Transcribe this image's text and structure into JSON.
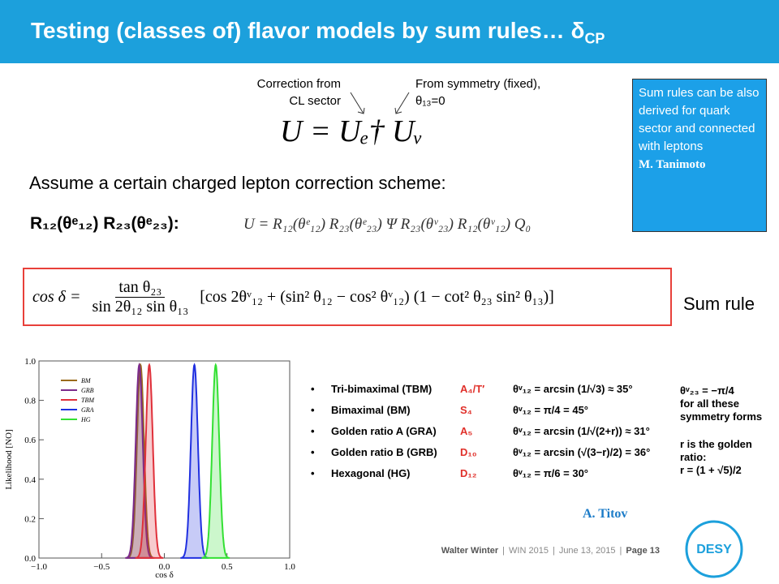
{
  "header": {
    "title": "Testing (classes of) flavor models by sum rules… δ",
    "title_sub": "CP"
  },
  "annotations": {
    "correction": [
      "Correction from",
      "CL sector"
    ],
    "symmetry": [
      "From symmetry (fixed),",
      "θ₁₃=0"
    ]
  },
  "equation_main": "U = Uₑ† Uᵥ",
  "sidebox": {
    "text": "Sum rules can be also derived for quark sector and connected with leptons",
    "author": "M. Tanimoto"
  },
  "assume": "Assume a certain charged lepton correction scheme:",
  "scheme": "R₁₂(θᵉ₁₂) R₂₃(θᵉ₂₃):",
  "equation_u": "U = R₁₂(θᵉ₁₂) R₂₃(θᵉ₂₃) Ψ R₂₃(θᵛ₂₃) R₁₂(θᵛ₁₂) Q₀",
  "sum_rule": {
    "lhs": "cos δ =",
    "numerator": "tan θ₂₃",
    "denominator": "sin 2θ₁₂ sin θ₁₃",
    "bracket": "[cos 2θᵛ₁₂ + (sin² θ₁₂ − cos² θᵛ₁₂) (1 − cot² θ₂₃ sin² θ₁₃)]",
    "label": "Sum rule"
  },
  "table": {
    "rows": [
      [
        "Tri-bimaximal (TBM)",
        "A₄/T′",
        "θᵛ₁₂ = arcsin (1/√3) ≈ 35°"
      ],
      [
        "Bimaximal (BM)",
        "S₄",
        "θᵛ₁₂ = π/4 = 45°"
      ],
      [
        "Golden ratio A (GRA)",
        "A₅",
        "θᵛ₁₂ = arcsin (1/√(2+r)) ≈ 31°"
      ],
      [
        "Golden ratio B (GRB)",
        "D₁₀",
        "θᵛ₁₂ = arcsin (√(3−r)/2) = 36°"
      ],
      [
        "Hexagonal (HG)",
        "D₁₂",
        "θᵛ₁₂ = π/6 = 30°"
      ]
    ]
  },
  "notes": [
    "θᵛ₂₃ = −π/4",
    "for all these",
    "symmetry forms",
    "r is the golden",
    "ratio:",
    "r = (1 + √5)/2"
  ],
  "credit": "A. Titov",
  "footer": {
    "separator": "|",
    "items": [
      "Walter Winter",
      "WIN 2015",
      "June 13, 2015",
      "Page 13"
    ]
  },
  "logo": "DESY",
  "chart_data": {
    "type": "peaks",
    "xlabel": "cos δ",
    "ylabel": "Likelihood [NO]",
    "xlim": [
      -1,
      1
    ],
    "ylim": [
      0,
      1
    ],
    "xticks": [
      {
        "value": -1,
        "label": "−1.0"
      },
      {
        "value": -0.5,
        "label": "−0.5"
      },
      {
        "value": 0,
        "label": "0.0"
      },
      {
        "value": 0.5,
        "label": "0.5"
      },
      {
        "value": 1,
        "label": "1.0"
      }
    ],
    "yticks": [
      {
        "value": 0,
        "label": "0.0"
      },
      {
        "value": 0.2,
        "label": "0.2"
      },
      {
        "value": 0.4,
        "label": "0.4"
      },
      {
        "value": 0.6,
        "label": "0.6"
      },
      {
        "value": 0.8,
        "label": "0.8"
      },
      {
        "value": 1,
        "label": "1.0"
      }
    ],
    "series": [
      {
        "name": "BM",
        "color": "#9a6b1c",
        "x": [
          -0.19
        ],
        "values": [
          0.98
        ]
      },
      {
        "name": "GRB",
        "color": "#7b2a8c",
        "x": [
          -0.2
        ],
        "values": [
          0.98
        ]
      },
      {
        "name": "TBM",
        "color": "#e0303a",
        "x": [
          -0.12
        ],
        "values": [
          0.98
        ]
      },
      {
        "name": "GRA",
        "color": "#2030e0",
        "x": [
          0.24
        ],
        "values": [
          0.98
        ]
      },
      {
        "name": "HG",
        "color": "#33e033",
        "x": [
          0.41
        ],
        "values": [
          0.98
        ]
      }
    ]
  }
}
